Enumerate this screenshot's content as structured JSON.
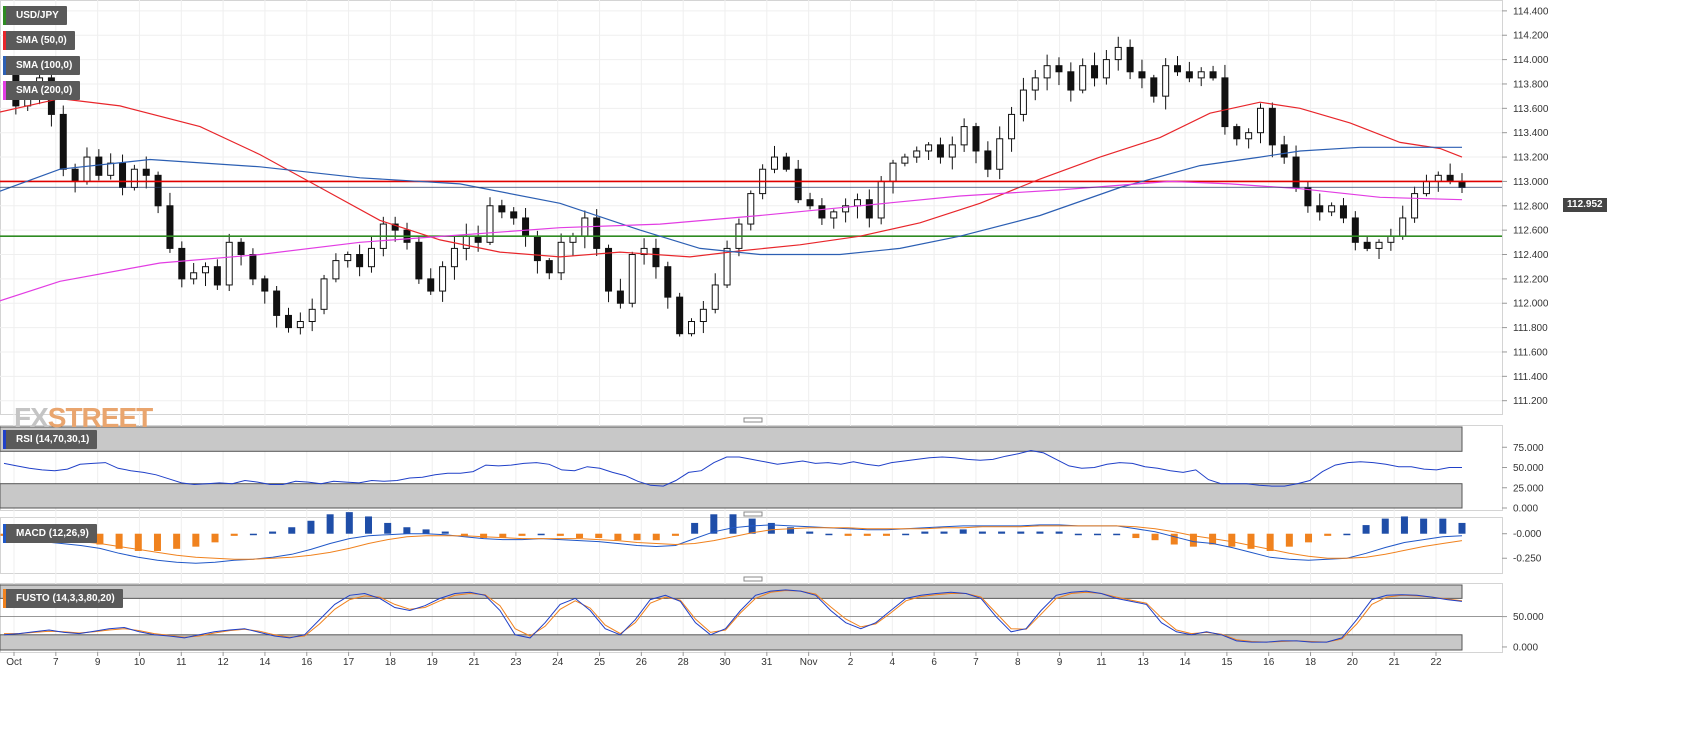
{
  "legend": {
    "symbol": "USD/JPY",
    "sma50": "SMA (50,0)",
    "sma100": "SMA (100,0)",
    "sma200": "SMA (200,0)",
    "rsi": "RSI (14,70,30,1)",
    "macd": "MACD (12,26,9)",
    "fusto": "FUSTO (14,3,3,80,20)"
  },
  "logo": {
    "fx": "FX",
    "street": "STREET"
  },
  "colors": {
    "sma50": "#e8262b",
    "sma100": "#2c5fb3",
    "sma200": "#e23de3",
    "resistance": "#e00000",
    "support": "#2e8b22",
    "rsi": "#2040c8",
    "macd_line": "#2058c8",
    "macd_signal": "#f0821e",
    "macd_hist_pos": "#1f4ea8",
    "macd_hist_neg": "#f0821e"
  },
  "chart_data": [
    {
      "type": "candlestick",
      "title": "USD/JPY",
      "last_price": "112.952",
      "x_tick_labels": [
        "Oct",
        "7",
        "9",
        "10",
        "11",
        "12",
        "14",
        "16",
        "17",
        "18",
        "19",
        "21",
        "23",
        "24",
        "25",
        "26",
        "28",
        "30",
        "31",
        "Nov",
        "2",
        "4",
        "6",
        "7",
        "8",
        "9",
        "11",
        "13",
        "14",
        "15",
        "16",
        "18",
        "20",
        "21",
        "22"
      ],
      "y_ticks": [
        "114.400",
        "114.200",
        "114.000",
        "113.800",
        "113.600",
        "113.400",
        "113.200",
        "113.000",
        "112.800",
        "112.600",
        "112.400",
        "112.200",
        "112.000",
        "111.800",
        "111.600",
        "111.400",
        "111.200"
      ],
      "ylim": [
        111.14,
        114.44
      ],
      "horizontal_lines": [
        {
          "name": "resistance",
          "value": 113.0
        },
        {
          "name": "support",
          "value": 112.55
        }
      ],
      "close_path": [
        113.95,
        113.62,
        113.7,
        113.85,
        113.55,
        113.1,
        113.0,
        113.2,
        113.05,
        113.15,
        112.95,
        113.1,
        113.05,
        112.8,
        112.45,
        112.2,
        112.25,
        112.3,
        112.15,
        112.5,
        112.4,
        112.2,
        112.1,
        111.9,
        111.8,
        111.85,
        111.95,
        112.2,
        112.35,
        112.4,
        112.3,
        112.45,
        112.65,
        112.6,
        112.5,
        112.2,
        112.1,
        112.3,
        112.45,
        112.55,
        112.5,
        112.8,
        112.75,
        112.7,
        112.55,
        112.35,
        112.25,
        112.5,
        112.55,
        112.7,
        112.45,
        112.1,
        112.0,
        112.4,
        112.45,
        112.3,
        112.05,
        111.75,
        111.85,
        111.95,
        112.15,
        112.45,
        112.65,
        112.9,
        113.1,
        113.2,
        113.1,
        112.85,
        112.8,
        112.7,
        112.75,
        112.8,
        112.85,
        112.7,
        113.0,
        113.15,
        113.2,
        113.25,
        113.3,
        113.2,
        113.3,
        113.45,
        113.25,
        113.1,
        113.35,
        113.55,
        113.75,
        113.85,
        113.95,
        113.9,
        113.75,
        113.95,
        113.85,
        114.0,
        114.1,
        113.9,
        113.85,
        113.7,
        113.95,
        113.9,
        113.85,
        113.9,
        113.85,
        113.45,
        113.35,
        113.4,
        113.6,
        113.3,
        113.2,
        112.95,
        112.8,
        112.75,
        112.8,
        112.7,
        112.5,
        112.45,
        112.5,
        112.55,
        112.7,
        112.9,
        113.0,
        113.05,
        113.0,
        112.95
      ],
      "sma50": [
        [
          0,
          113.57
        ],
        [
          60,
          113.68
        ],
        [
          120,
          113.62
        ],
        [
          200,
          113.45
        ],
        [
          260,
          113.22
        ],
        [
          320,
          112.95
        ],
        [
          380,
          112.68
        ],
        [
          440,
          112.52
        ],
        [
          500,
          112.42
        ],
        [
          560,
          112.38
        ],
        [
          620,
          112.42
        ],
        [
          690,
          112.38
        ],
        [
          740,
          112.43
        ],
        [
          800,
          112.48
        ],
        [
          860,
          112.55
        ],
        [
          920,
          112.66
        ],
        [
          980,
          112.82
        ],
        [
          1040,
          113.02
        ],
        [
          1100,
          113.2
        ],
        [
          1160,
          113.36
        ],
        [
          1210,
          113.56
        ],
        [
          1260,
          113.65
        ],
        [
          1300,
          113.6
        ],
        [
          1350,
          113.48
        ],
        [
          1400,
          113.32
        ],
        [
          1440,
          113.27
        ],
        [
          1462,
          113.2
        ]
      ],
      "sma100": [
        [
          0,
          112.92
        ],
        [
          60,
          113.1
        ],
        [
          150,
          113.18
        ],
        [
          260,
          113.12
        ],
        [
          360,
          113.03
        ],
        [
          460,
          112.98
        ],
        [
          560,
          112.82
        ],
        [
          640,
          112.6
        ],
        [
          700,
          112.45
        ],
        [
          760,
          112.4
        ],
        [
          840,
          112.4
        ],
        [
          900,
          112.45
        ],
        [
          960,
          112.55
        ],
        [
          1040,
          112.72
        ],
        [
          1120,
          112.95
        ],
        [
          1200,
          113.13
        ],
        [
          1260,
          113.2
        ],
        [
          1300,
          113.25
        ],
        [
          1360,
          113.28
        ],
        [
          1462,
          113.28
        ]
      ],
      "sma200": [
        [
          0,
          112.02
        ],
        [
          60,
          112.18
        ],
        [
          160,
          112.33
        ],
        [
          260,
          112.4
        ],
        [
          360,
          112.5
        ],
        [
          460,
          112.56
        ],
        [
          560,
          112.62
        ],
        [
          660,
          112.65
        ],
        [
          760,
          112.72
        ],
        [
          860,
          112.8
        ],
        [
          960,
          112.88
        ],
        [
          1060,
          112.93
        ],
        [
          1170,
          113.0
        ],
        [
          1230,
          112.98
        ],
        [
          1300,
          112.94
        ],
        [
          1380,
          112.87
        ],
        [
          1462,
          112.85
        ]
      ]
    },
    {
      "type": "line",
      "title": "RSI (14,70,30,1)",
      "y_ticks": [
        "75.000",
        "50.000",
        "25.000",
        "0.000"
      ],
      "ylim": [
        0,
        100
      ],
      "overbought": 70,
      "oversold": 30,
      "values": [
        55,
        52,
        49,
        47,
        46,
        48,
        54,
        55,
        56,
        49,
        46,
        44,
        41,
        36,
        31,
        29,
        30,
        31,
        30,
        34,
        32,
        29,
        29,
        33,
        32,
        30,
        33,
        32,
        31,
        34,
        33,
        34,
        37,
        38,
        41,
        43,
        43,
        45,
        53,
        52,
        53,
        55,
        56,
        54,
        47,
        46,
        51,
        49,
        44,
        40,
        33,
        28,
        27,
        34,
        44,
        46,
        56,
        63,
        63,
        60,
        57,
        54,
        56,
        58,
        55,
        56,
        54,
        57,
        54,
        52,
        56,
        58,
        60,
        62,
        63,
        62,
        60,
        59,
        60,
        64,
        67,
        71,
        68,
        60,
        52,
        49,
        50,
        54,
        56,
        55,
        51,
        49,
        46,
        44,
        47,
        35,
        30,
        30,
        30,
        28,
        27,
        27,
        30,
        34,
        45,
        53,
        56,
        57,
        56,
        54,
        51,
        51,
        48,
        47,
        50,
        50
      ]
    },
    {
      "type": "bar+line",
      "title": "MACD (12,26,9)",
      "y_ticks": [
        "-0.000",
        "-0.250"
      ],
      "ylim": [
        -0.38,
        0.15
      ],
      "macd": [
        -0.02,
        -0.05,
        -0.08,
        -0.1,
        -0.12,
        -0.15,
        -0.2,
        -0.24,
        -0.27,
        -0.29,
        -0.3,
        -0.29,
        -0.27,
        -0.26,
        -0.24,
        -0.21,
        -0.16,
        -0.1,
        -0.05,
        -0.02,
        -0.01,
        0.0,
        0.0,
        -0.01,
        -0.03,
        -0.05,
        -0.06,
        -0.06,
        -0.05,
        -0.06,
        -0.07,
        -0.08,
        -0.1,
        -0.12,
        -0.13,
        -0.12,
        -0.05,
        0.02,
        0.06,
        0.08,
        0.09,
        0.08,
        0.07,
        0.06,
        0.05,
        0.04,
        0.04,
        0.05,
        0.06,
        0.07,
        0.08,
        0.08,
        0.08,
        0.08,
        0.09,
        0.09,
        0.08,
        0.08,
        0.08,
        0.05,
        0.02,
        -0.03,
        -0.08,
        -0.1,
        -0.14,
        -0.19,
        -0.24,
        -0.26,
        -0.27,
        -0.26,
        -0.25,
        -0.2,
        -0.14,
        -0.09,
        -0.06,
        -0.03,
        -0.02
      ],
      "signal": [
        -0.01,
        -0.02,
        -0.04,
        -0.06,
        -0.08,
        -0.1,
        -0.13,
        -0.16,
        -0.19,
        -0.22,
        -0.24,
        -0.25,
        -0.26,
        -0.26,
        -0.25,
        -0.24,
        -0.22,
        -0.19,
        -0.15,
        -0.1,
        -0.06,
        -0.03,
        -0.02,
        -0.02,
        -0.02,
        -0.03,
        -0.04,
        -0.05,
        -0.05,
        -0.05,
        -0.05,
        -0.06,
        -0.07,
        -0.09,
        -0.1,
        -0.11,
        -0.1,
        -0.07,
        -0.03,
        0.01,
        0.04,
        0.05,
        0.06,
        0.06,
        0.06,
        0.05,
        0.05,
        0.05,
        0.05,
        0.06,
        0.06,
        0.07,
        0.07,
        0.07,
        0.08,
        0.08,
        0.08,
        0.08,
        0.08,
        0.07,
        0.05,
        0.02,
        -0.02,
        -0.05,
        -0.08,
        -0.12,
        -0.16,
        -0.2,
        -0.23,
        -0.25,
        -0.25,
        -0.24,
        -0.21,
        -0.17,
        -0.13,
        -0.1,
        -0.07
      ]
    },
    {
      "type": "line",
      "title": "FUSTO (14,3,3,80,20)",
      "y_ticks": [
        "50.000",
        "0.000"
      ],
      "ylim": [
        -5,
        102
      ],
      "overbought": 80,
      "oversold": 20,
      "k": [
        20,
        22,
        25,
        28,
        24,
        22,
        26,
        30,
        32,
        25,
        20,
        18,
        15,
        20,
        25,
        28,
        30,
        24,
        18,
        15,
        20,
        45,
        70,
        85,
        88,
        80,
        65,
        60,
        68,
        80,
        88,
        90,
        85,
        60,
        20,
        15,
        40,
        70,
        80,
        60,
        30,
        20,
        45,
        78,
        85,
        75,
        40,
        20,
        30,
        60,
        85,
        92,
        94,
        92,
        85,
        60,
        40,
        30,
        40,
        60,
        80,
        85,
        88,
        90,
        88,
        80,
        50,
        25,
        30,
        60,
        85,
        90,
        92,
        88,
        80,
        75,
        70,
        40,
        25,
        20,
        25,
        20,
        10,
        8,
        8,
        10,
        10,
        8,
        8,
        15,
        45,
        78,
        85,
        86,
        85,
        82,
        78,
        75
      ],
      "d": [
        22,
        22,
        24,
        26,
        25,
        23,
        25,
        28,
        30,
        27,
        22,
        19,
        16,
        18,
        23,
        27,
        29,
        26,
        20,
        16,
        18,
        38,
        62,
        78,
        84,
        82,
        70,
        62,
        65,
        76,
        85,
        88,
        86,
        68,
        30,
        18,
        34,
        62,
        76,
        64,
        36,
        22,
        40,
        72,
        82,
        77,
        46,
        24,
        28,
        56,
        80,
        90,
        93,
        92,
        87,
        66,
        46,
        33,
        38,
        56,
        76,
        83,
        86,
        88,
        88,
        82,
        56,
        30,
        29,
        54,
        80,
        88,
        90,
        88,
        82,
        77,
        72,
        48,
        28,
        22,
        24,
        21,
        12,
        9,
        8,
        9,
        10,
        9,
        8,
        13,
        38,
        70,
        82,
        85,
        84,
        82,
        79,
        76
      ]
    }
  ]
}
